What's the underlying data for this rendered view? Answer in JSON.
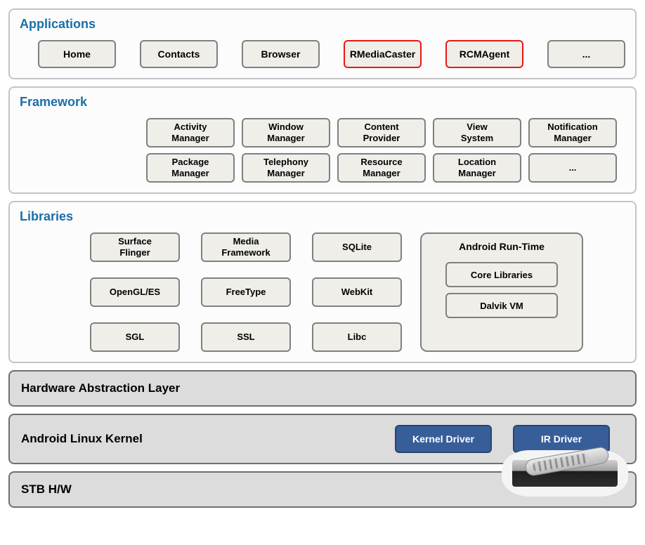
{
  "colors": {
    "title_blue": "#1a6fa8",
    "box_bg": "#efeee9",
    "box_border": "#808080",
    "highlight_border": "#e81818",
    "blue_box_bg": "#385e9a",
    "blue_box_border": "#28446f",
    "panel_light_bg": "#fcfcfc",
    "panel_light_border": "#c4c4c4",
    "panel_dark_bg": "#dcdcdc",
    "panel_dark_border": "#6f6f6f"
  },
  "diagram": {
    "type": "layered-architecture",
    "layers": [
      "Applications",
      "Framework",
      "Libraries",
      "Hardware Abstraction Layer",
      "Android Linux Kernel",
      "STB H/W"
    ]
  },
  "applications": {
    "title": "Applications",
    "items": [
      {
        "label": "Home",
        "highlight": false
      },
      {
        "label": "Contacts",
        "highlight": false
      },
      {
        "label": "Browser",
        "highlight": false
      },
      {
        "label": "RMediaCaster",
        "highlight": true
      },
      {
        "label": "RCMAgent",
        "highlight": true
      },
      {
        "label": "...",
        "highlight": false
      }
    ]
  },
  "framework": {
    "title": "Framework",
    "row1": [
      "Activity\nManager",
      "Window\nManager",
      "Content\nProvider",
      "View\nSystem",
      "Notification\nManager"
    ],
    "row2": [
      "Package\nManager",
      "Telephony\nManager",
      "Resource\nManager",
      "Location\nManager",
      "..."
    ]
  },
  "libraries": {
    "title": "Libraries",
    "grid": [
      [
        "Surface\nFlinger",
        "Media\nFramework",
        "SQLite"
      ],
      [
        "OpenGL/ES",
        "FreeType",
        "WebKit"
      ],
      [
        "SGL",
        "SSL",
        "Libc"
      ]
    ],
    "runtime": {
      "title": "Android Run-Time",
      "items": [
        "Core Libraries",
        "Dalvik VM"
      ]
    }
  },
  "hal": {
    "title": "Hardware Abstraction Layer"
  },
  "kernel": {
    "title": "Android Linux Kernel",
    "drivers": [
      "Kernel Driver",
      "IR Driver"
    ]
  },
  "stb": {
    "title": "STB H/W"
  }
}
